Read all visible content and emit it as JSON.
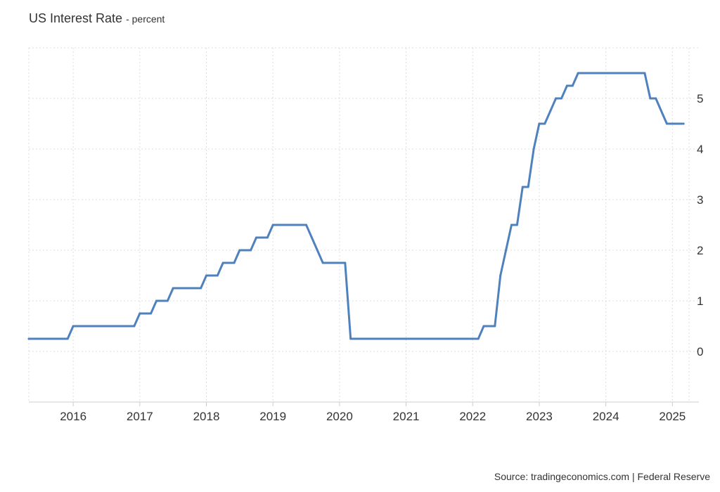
{
  "chart_data": {
    "type": "line",
    "title": "US Interest Rate",
    "subtitle": "- percent",
    "xlabel": "",
    "ylabel": "",
    "x_ticks": [
      "2016",
      "2017",
      "2018",
      "2019",
      "2020",
      "2021",
      "2022",
      "2023",
      "2024",
      "2025"
    ],
    "y_ticks": [
      0,
      1,
      2,
      3,
      4,
      5
    ],
    "xlim": [
      "2015-05",
      "2025-04"
    ],
    "ylim": [
      -1,
      6
    ],
    "grid": true,
    "legend": "none",
    "series": [
      {
        "color": "#4f81bd",
        "x": [
          "2015-05",
          "2015-12",
          "2016-01",
          "2016-12",
          "2017-01",
          "2017-03",
          "2017-04",
          "2017-06",
          "2017-07",
          "2017-12",
          "2018-01",
          "2018-03",
          "2018-04",
          "2018-06",
          "2018-07",
          "2018-09",
          "2018-10",
          "2018-12",
          "2019-01",
          "2019-07",
          "2019-08",
          "2019-09",
          "2019-10",
          "2020-01",
          "2020-02",
          "2020-03",
          "2020-04",
          "2022-02",
          "2022-03",
          "2022-05",
          "2022-06",
          "2022-07",
          "2022-08",
          "2022-09",
          "2022-10",
          "2022-11",
          "2022-12",
          "2023-01",
          "2023-02",
          "2023-03",
          "2023-04",
          "2023-05",
          "2023-06",
          "2023-07",
          "2023-08",
          "2024-08",
          "2024-09",
          "2024-10",
          "2024-11",
          "2024-12",
          "2025-01",
          "2025-02",
          "2025-03"
        ],
        "values": [
          0.25,
          0.25,
          0.5,
          0.5,
          0.75,
          0.75,
          1.0,
          1.0,
          1.25,
          1.25,
          1.5,
          1.5,
          1.75,
          1.75,
          2.0,
          2.0,
          2.25,
          2.25,
          2.5,
          2.5,
          2.25,
          2.0,
          1.75,
          1.75,
          1.75,
          0.25,
          0.25,
          0.25,
          0.5,
          0.5,
          1.5,
          2.0,
          2.5,
          2.5,
          3.25,
          3.25,
          4.0,
          4.5,
          4.5,
          4.75,
          5.0,
          5.0,
          5.25,
          5.25,
          5.5,
          5.5,
          5.0,
          5.0,
          4.75,
          4.5,
          4.5,
          4.5,
          4.5
        ]
      }
    ]
  },
  "source": "Source: tradingeconomics.com | Federal Reserve"
}
